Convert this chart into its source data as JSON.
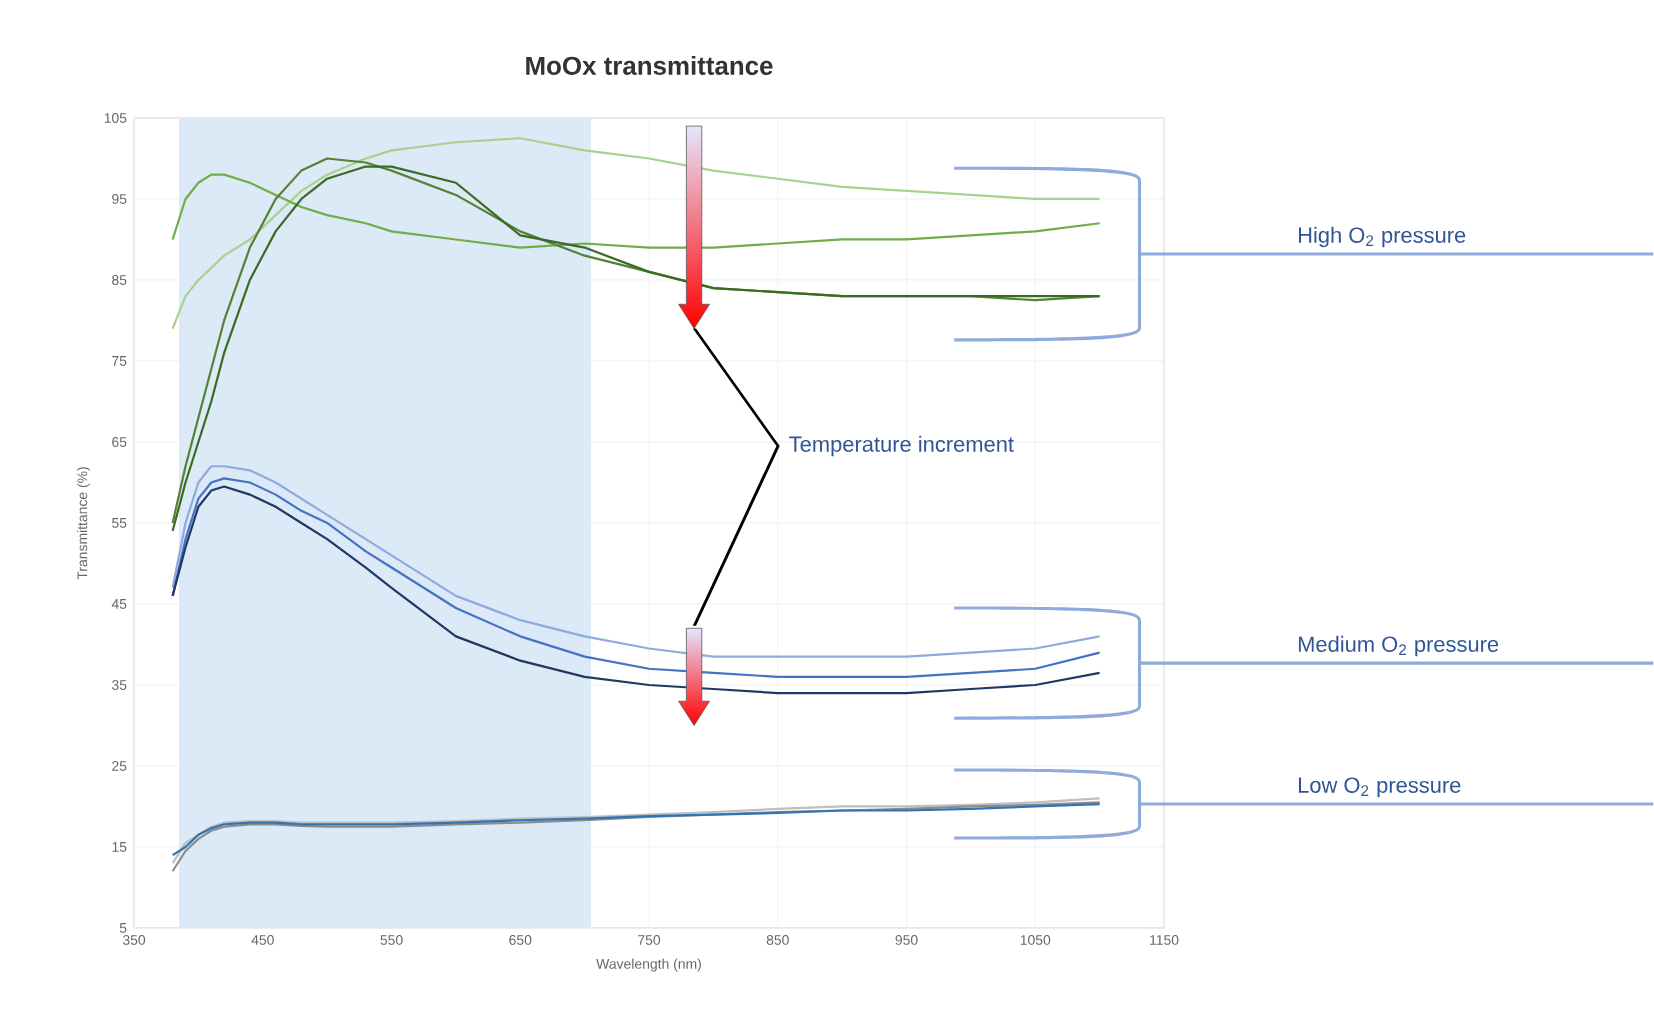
{
  "chart_data": {
    "type": "line",
    "title": "MoOx transmittance",
    "xlabel": "Wavelength (nm)",
    "ylabel": "Transmittance (%)",
    "x": [
      380,
      390,
      400,
      410,
      420,
      440,
      460,
      480,
      500,
      530,
      550,
      600,
      650,
      700,
      750,
      800,
      850,
      900,
      950,
      1000,
      1050,
      1100
    ],
    "series": [
      {
        "color": "#a9d18e",
        "values": [
          79,
          83,
          85,
          86.5,
          88,
          90,
          93,
          96,
          98,
          100,
          101,
          102,
          102.5,
          101,
          100,
          98.5,
          97.5,
          96.5,
          96,
          95.5,
          95,
          95
        ]
      },
      {
        "color": "#70ad47",
        "values": [
          90,
          95,
          97,
          98,
          98,
          97,
          95.5,
          94,
          93,
          92,
          91,
          90,
          89,
          89.5,
          89,
          89,
          89.5,
          90,
          90,
          90.5,
          91,
          92
        ]
      },
      {
        "color": "#548235",
        "values": [
          55,
          62,
          68,
          74,
          80,
          89,
          95,
          98.5,
          100,
          99.5,
          98.5,
          95.5,
          91,
          88,
          86,
          84,
          83.5,
          83,
          83,
          83,
          82.5,
          83
        ]
      },
      {
        "color": "#3a6b23",
        "values": [
          54,
          60,
          65,
          70,
          76,
          85,
          91,
          95,
          97.5,
          99,
          99,
          97,
          90.5,
          89,
          86,
          84,
          83.5,
          83,
          83,
          83,
          83,
          83
        ]
      },
      {
        "color": "#8faadc",
        "values": [
          47,
          55,
          60,
          62,
          62,
          61.5,
          60,
          58,
          56,
          53,
          51,
          46,
          43,
          41,
          39.5,
          38.5,
          38.5,
          38.5,
          38.5,
          39,
          39.5,
          41
        ]
      },
      {
        "color": "#4472c4",
        "values": [
          46,
          53,
          58,
          60,
          60.5,
          60,
          58.5,
          56.5,
          55,
          51.5,
          49.5,
          44.5,
          41,
          38.5,
          37,
          36.5,
          36,
          36,
          36,
          36.5,
          37,
          39
        ]
      },
      {
        "color": "#1f3864",
        "values": [
          46,
          52,
          57,
          59,
          59.5,
          58.5,
          57,
          55,
          53,
          49.5,
          47,
          41,
          38,
          36,
          35,
          34.5,
          34,
          34,
          34,
          34.5,
          35,
          36.5
        ]
      },
      {
        "color": "#bfbfbf",
        "values": [
          13,
          15.5,
          16.5,
          17.5,
          18,
          18.2,
          18.2,
          18,
          18,
          18,
          18,
          18.2,
          18.5,
          18.7,
          19,
          19.3,
          19.7,
          20,
          20,
          20.2,
          20.5,
          21
        ]
      },
      {
        "color": "#8c8c8c",
        "values": [
          12,
          14.5,
          16,
          17,
          17.5,
          17.8,
          17.8,
          17.6,
          17.5,
          17.5,
          17.5,
          17.8,
          18,
          18.3,
          18.7,
          19,
          19.3,
          19.5,
          19.7,
          20,
          20.2,
          20.5
        ]
      },
      {
        "color": "#2e75b6",
        "values": [
          14,
          15,
          16.5,
          17.3,
          17.8,
          18,
          18,
          17.8,
          17.8,
          17.8,
          17.8,
          18,
          18.3,
          18.5,
          18.8,
          19,
          19.2,
          19.5,
          19.5,
          19.7,
          20,
          20.3
        ]
      }
    ],
    "xlim": [
      350,
      1150
    ],
    "xticks": [
      350,
      450,
      550,
      650,
      750,
      850,
      950,
      1050,
      1150
    ],
    "ylim": [
      5,
      105
    ],
    "yticks": [
      5,
      15,
      25,
      35,
      45,
      55,
      65,
      75,
      85,
      95,
      105
    ],
    "grid": true,
    "legend": false,
    "marker": "none",
    "bands": [
      {
        "axis": "x",
        "from": 385,
        "to": 705,
        "color": "#dce9f6"
      }
    ],
    "annotations": [
      "Temperature increment",
      "High O$_{2}$ pressure",
      "Medium O$_{2}$ pressure",
      "Low O$_{2}$ pressure"
    ]
  }
}
